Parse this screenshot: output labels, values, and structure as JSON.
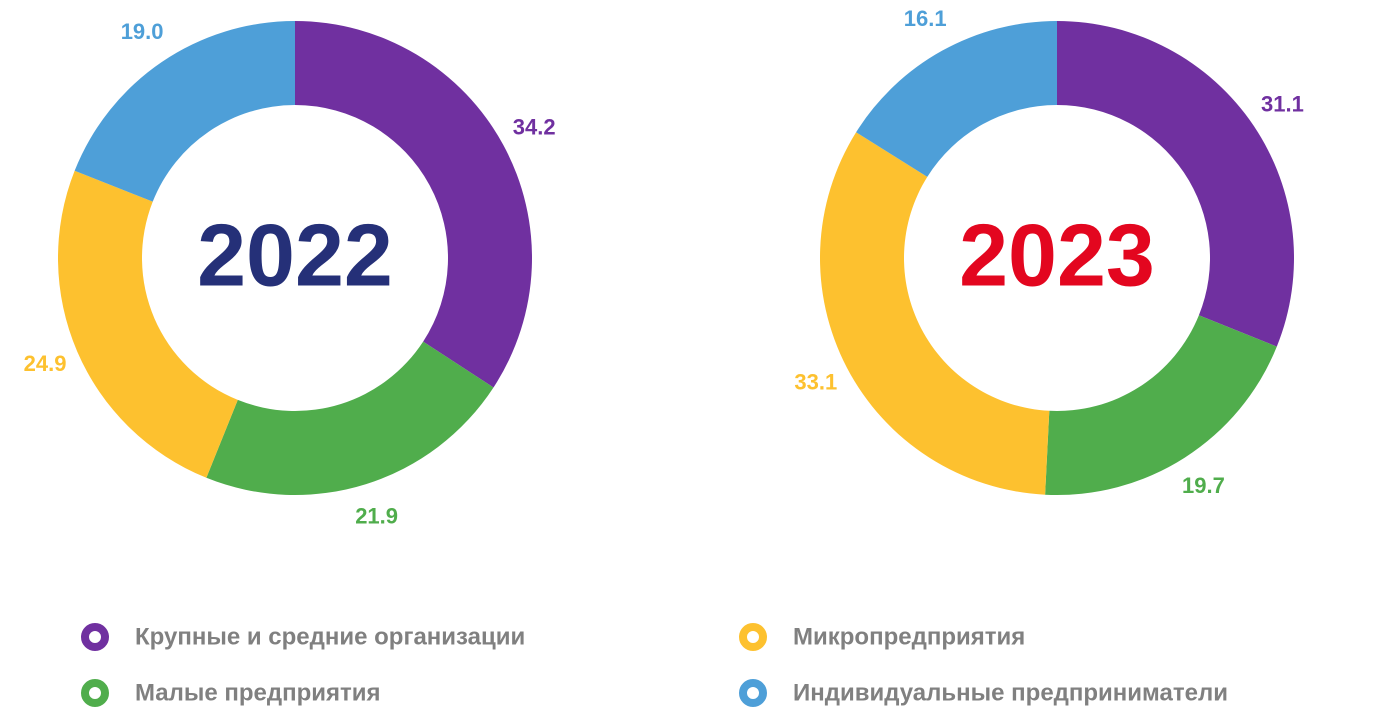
{
  "legend": {
    "categories": [
      "Крупные и средние организации",
      "Малые предприятия",
      "Микропредприятия",
      "Индивидуальные предприниматели"
    ],
    "colors": [
      "#7030a0",
      "#50ad4c",
      "#fdc12f",
      "#4e9fd8"
    ]
  },
  "chart_data": [
    {
      "type": "donut",
      "title": "2022",
      "title_color": "#253078",
      "values": [
        34.2,
        21.9,
        24.9,
        19
      ],
      "value_labels": [
        "34.2",
        "21.9",
        "24.9",
        "19.0"
      ]
    },
    {
      "type": "donut",
      "title": "2023",
      "title_color": "#e3061f",
      "values": [
        31.1,
        19.7,
        33.1,
        16.1
      ],
      "value_labels": [
        "31.1",
        "19.7",
        "33.1",
        "16.1"
      ]
    }
  ]
}
